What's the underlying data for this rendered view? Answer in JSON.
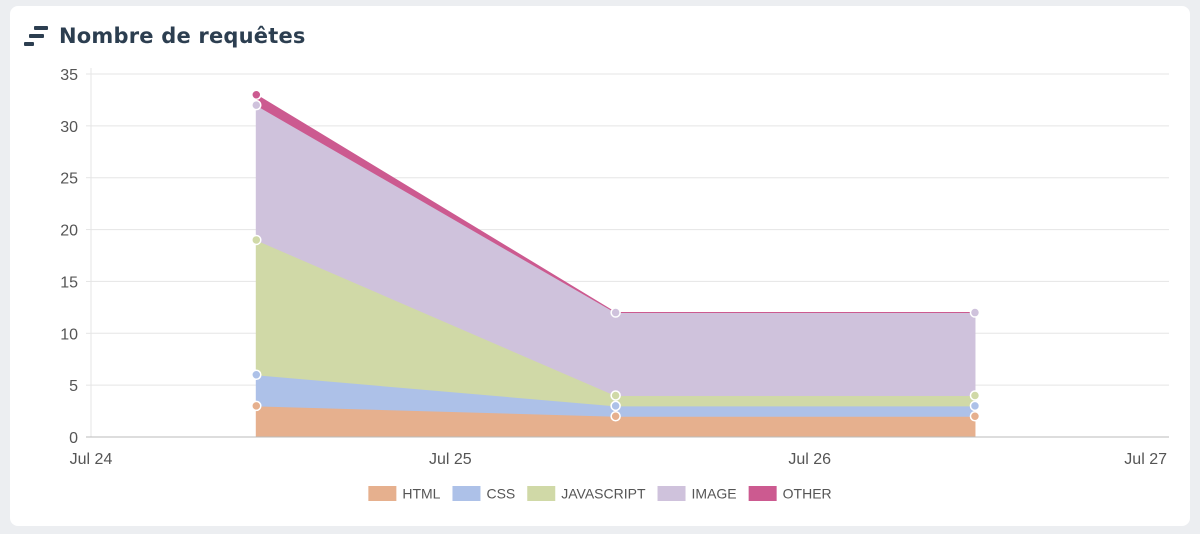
{
  "header": {
    "title": "Nombre de requêtes",
    "icon": "sort-bars-icon"
  },
  "chart_data": {
    "type": "area",
    "stacked": true,
    "title": "Nombre de requêtes",
    "xlabel": "",
    "ylabel": "",
    "x_ticks": [
      "Jul 24",
      "Jul 25",
      "Jul 26",
      "Jul 27"
    ],
    "x_ticks_days": [
      24,
      25,
      26,
      27
    ],
    "x": [
      "Jul 24 11:00",
      "Jul 25 11:00",
      "Jul 26 11:00"
    ],
    "x_days": [
      24.46,
      25.46,
      26.46
    ],
    "ylim": [
      0,
      35
    ],
    "y_ticks": [
      0,
      5,
      10,
      15,
      20,
      25,
      30,
      35
    ],
    "grid": true,
    "legend": "bottom",
    "series": [
      {
        "name": "HTML",
        "values": [
          3,
          2,
          2
        ],
        "color": "#e6b08e"
      },
      {
        "name": "CSS",
        "values": [
          3,
          1,
          1
        ],
        "color": "#adc1e8"
      },
      {
        "name": "JAVASCRIPT",
        "values": [
          13,
          1,
          1
        ],
        "color": "#d0d9a7"
      },
      {
        "name": "IMAGE",
        "values": [
          13,
          8,
          8
        ],
        "color": "#cfc2dc"
      },
      {
        "name": "OTHER",
        "values": [
          1,
          0,
          0
        ],
        "color": "#cc5a90"
      }
    ]
  }
}
